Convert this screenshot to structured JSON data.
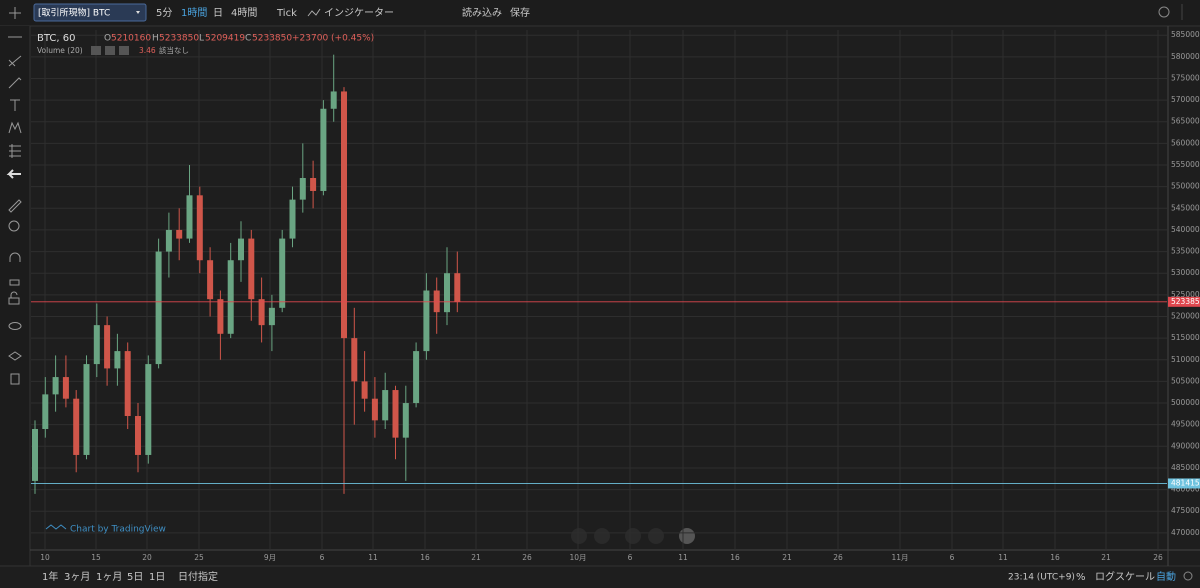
{
  "toolbar": {
    "symbol": "[取引所現物] BTC",
    "intervals": [
      "5分",
      "1時間",
      "日",
      "4時間",
      "Tick"
    ],
    "indicators": "インジケーター",
    "load": "読み込み",
    "save": "保存"
  },
  "legend": {
    "symbol": "BTC, 60",
    "o_label": "O",
    "open": 5210160,
    "h_label": "H",
    "high": 5233850,
    "l_label": "L",
    "low": 5209419,
    "c_label": "C",
    "close": 5233850,
    "change": "+23700 (+0.45%)",
    "volume_label": "Volume (20)",
    "volume_value": 3.46,
    "volume_note": "該当なし"
  },
  "watermark": "Chart by TradingView",
  "bottom_bar": {
    "ranges": [
      "1年",
      "3ヶ月",
      "1ヶ月",
      "5日",
      "1日"
    ],
    "goto_date": "日付指定",
    "time": "23:14 (UTC+9)",
    "percent": "%",
    "log_scale": "ログスケール",
    "auto": "自動"
  },
  "chart_data": {
    "type": "candlestick",
    "up_color": "#6aa583",
    "down_color": "#d0564a",
    "open": [
      4820000,
      4940000,
      5020000,
      5060000,
      5010000,
      4880000,
      5090000,
      5180000,
      5080000,
      5120000,
      4970000,
      4880000,
      5090000,
      5350000,
      5400000,
      5380000,
      5480000,
      5330000,
      5240000,
      5160000,
      5330000,
      5380000,
      5240000,
      5180000,
      5220000,
      5380000,
      5470000,
      5520000,
      5490000,
      5680000,
      5720000,
      5150000,
      5050000,
      5010000,
      4960000,
      5030000,
      4920000,
      5000000,
      5120000,
      5260000,
      5210000,
      5300000
    ],
    "high": [
      4960000,
      5060000,
      5110000,
      5110000,
      5030000,
      5110000,
      5230000,
      5200000,
      5160000,
      5140000,
      5000000,
      5110000,
      5380000,
      5440000,
      5450000,
      5550000,
      5500000,
      5360000,
      5260000,
      5370000,
      5420000,
      5400000,
      5290000,
      5250000,
      5400000,
      5500000,
      5600000,
      5560000,
      5700000,
      5805000,
      5730000,
      5220000,
      5120000,
      5060000,
      5070000,
      5040000,
      5040000,
      5140000,
      5300000,
      5290000,
      5360000,
      5350000
    ],
    "low": [
      4790000,
      4920000,
      4980000,
      4990000,
      4840000,
      4870000,
      5060000,
      5040000,
      5040000,
      4940000,
      4840000,
      4860000,
      5080000,
      5290000,
      5330000,
      5370000,
      5300000,
      5200000,
      5100000,
      5150000,
      5280000,
      5190000,
      5140000,
      5120000,
      5210000,
      5360000,
      5440000,
      5450000,
      5480000,
      5650000,
      4790000,
      4950000,
      4980000,
      4920000,
      4940000,
      4870000,
      4820000,
      4990000,
      5100000,
      5160000,
      5180000,
      5210000
    ],
    "close": [
      4940000,
      5020000,
      5060000,
      5010000,
      4880000,
      5090000,
      5180000,
      5080000,
      5120000,
      4970000,
      4880000,
      5090000,
      5350000,
      5400000,
      5380000,
      5480000,
      5330000,
      5240000,
      5160000,
      5330000,
      5380000,
      5240000,
      5180000,
      5220000,
      5380000,
      5470000,
      5520000,
      5490000,
      5680000,
      5720000,
      5150000,
      5050000,
      5010000,
      4960000,
      5030000,
      4920000,
      5000000,
      5120000,
      5260000,
      5210000,
      5300000,
      5233850
    ],
    "price_lines": [
      {
        "value": 5233850,
        "color": "#e0484f"
      },
      {
        "value": 4814150,
        "color": "#6fc3df"
      }
    ],
    "ylim": [
      4665000,
      5862000
    ],
    "yticks": [
      4700000,
      4750000,
      4800000,
      4850000,
      4900000,
      4950000,
      5000000,
      5050000,
      5100000,
      5150000,
      5200000,
      5250000,
      5300000,
      5350000,
      5400000,
      5450000,
      5500000,
      5550000,
      5600000,
      5650000,
      5700000,
      5750000,
      5800000,
      5850000
    ],
    "xticks": [
      "10",
      "15",
      "20",
      "25",
      "9月",
      "6",
      "11",
      "16",
      "21",
      "26",
      "10月",
      "6",
      "11",
      "16",
      "21",
      "26",
      "11月",
      "6",
      "11",
      "16",
      "21",
      "26"
    ],
    "grid": true
  }
}
